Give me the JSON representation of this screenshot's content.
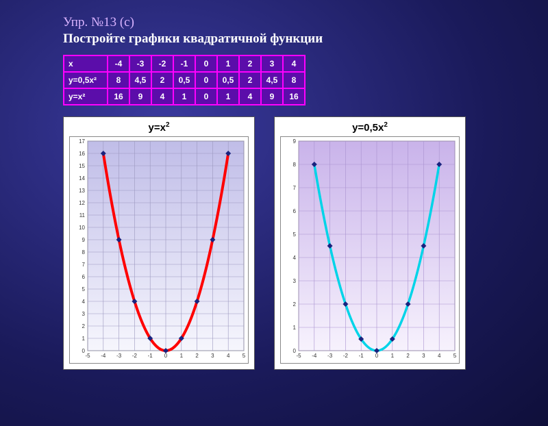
{
  "heading": {
    "line1": "Упр. №13 (с)",
    "line2": "Постройте графики квадратичной функции"
  },
  "table": {
    "header": "x",
    "xvals": [
      "-4",
      "-3",
      "-2",
      "-1",
      "0",
      "1",
      "2",
      "3",
      "4"
    ],
    "rows": [
      {
        "label": "y=0,5x²",
        "cells": [
          "8",
          "4,5",
          "2",
          "0,5",
          "0",
          "0,5",
          "2",
          "4,5",
          "8"
        ]
      },
      {
        "label": "y=x²",
        "cells": [
          "16",
          "9",
          "4",
          "1",
          "0",
          "1",
          "4",
          "9",
          "16"
        ]
      }
    ]
  },
  "chart1": {
    "type": "line",
    "title_html": "y=x<sup>2</sup>",
    "xlim": [
      -5,
      5
    ],
    "ylim": [
      0,
      17
    ],
    "xticks": [
      -5,
      -4,
      -3,
      -2,
      -1,
      0,
      1,
      2,
      3,
      4,
      5
    ],
    "yticks": [
      0,
      1,
      2,
      3,
      4,
      5,
      6,
      7,
      8,
      9,
      10,
      11,
      12,
      13,
      14,
      15,
      16,
      17
    ],
    "bg_top": "#c0bde8",
    "bg_bottom": "#f6f6fd",
    "grid_color": "#9c98bf",
    "line_color": "#ff0000",
    "line_width": 4,
    "marker_color": "#1a237e",
    "marker_size": 4,
    "tick_font": 8,
    "points": [
      [
        -4,
        16
      ],
      [
        -3,
        9
      ],
      [
        -2,
        4
      ],
      [
        -1,
        1
      ],
      [
        0,
        0
      ],
      [
        1,
        1
      ],
      [
        2,
        4
      ],
      [
        3,
        9
      ],
      [
        4,
        16
      ]
    ]
  },
  "chart2": {
    "type": "line",
    "title_html": "y=0,5x<sup>2</sup>",
    "xlim": [
      -5,
      5
    ],
    "ylim": [
      0,
      9
    ],
    "xticks": [
      -5,
      -4,
      -3,
      -2,
      -1,
      0,
      1,
      2,
      3,
      4,
      5
    ],
    "yticks": [
      0,
      1,
      2,
      3,
      4,
      5,
      6,
      7,
      8,
      9
    ],
    "bg_top": "#c9b3ea",
    "bg_bottom": "#f7f2fd",
    "grid_color": "#a992cf",
    "line_color": "#00d4e8",
    "line_width": 3.5,
    "marker_color": "#1a237e",
    "marker_size": 4,
    "tick_font": 8,
    "points": [
      [
        -4,
        8
      ],
      [
        -3,
        4.5
      ],
      [
        -2,
        2
      ],
      [
        -1,
        0.5
      ],
      [
        0,
        0
      ],
      [
        1,
        0.5
      ],
      [
        2,
        2
      ],
      [
        3,
        4.5
      ],
      [
        4,
        8
      ]
    ]
  }
}
